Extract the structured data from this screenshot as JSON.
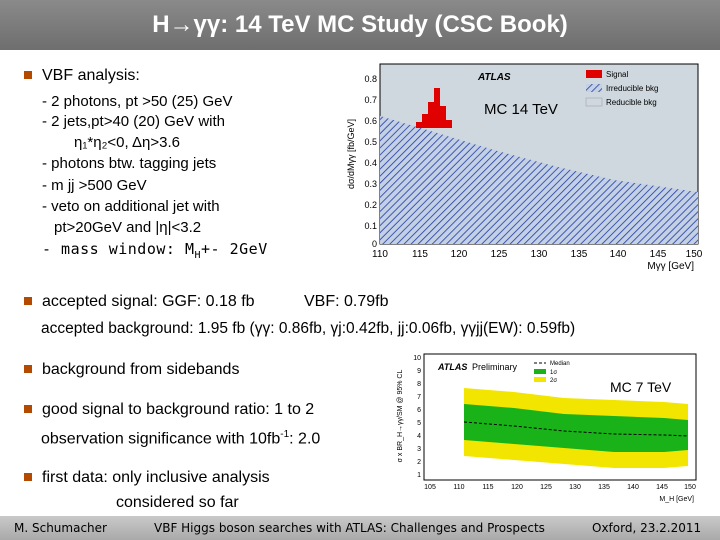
{
  "slide": {
    "title": "H→γγ: 14 TeV MC Study (CSC Book)",
    "vbf": {
      "heading": "VBF analysis:",
      "line1": "- 2 photons, pt >50 (25) GeV",
      "line2": "- 2 jets,pt>40 (20) GeV with",
      "line3": "η₁*η₂<0, Δη>3.6",
      "line4": "- photons btw. tagging jets",
      "line5": "- m jj >500 GeV",
      "line6": "- veto on additional jet with",
      "line7": "pt>20GeV and |η|<3.2",
      "line8": "- mass window: M",
      "line8_sub": "H",
      "line8_tail": "+- 2GeV"
    },
    "accepted": {
      "signal_label": "accepted signal: GGF: 0.18 fb",
      "signal_vbf": "VBF: 0.79fb",
      "background": "accepted background:  1.95 fb  (γγ: 0.86fb, γj:0.42fb,  jj:0.06fb,  γγjj(EW): 0.59fb)"
    },
    "sidebands": "background from sidebands",
    "ratio": {
      "line1": "good signal to background ratio: 1 to 2",
      "line2_pre": "observation significance with 10fb",
      "line2_sup": "-1",
      "line2_post": ": 2.0"
    },
    "firstdata": {
      "line1": "first data: only inclusive analysis",
      "line2": "considered so far"
    }
  },
  "plot1": {
    "atlas": "ATLAS",
    "overlay": "MC 14 TeV",
    "ylabel": "dσ/dMγγ [fb/GeV]",
    "xlabel": "Mγγ [GeV]",
    "legend": [
      "Signal",
      "Irreducible bkg",
      "Reducible bkg"
    ],
    "yticks": [
      "0.8",
      "0.7",
      "0.6",
      "0.5",
      "0.4",
      "0.3",
      "0.2",
      "0.1",
      "0"
    ],
    "xticks": [
      "110",
      "115",
      "120",
      "125",
      "130",
      "135",
      "140",
      "145",
      "150"
    ]
  },
  "plot2": {
    "atlas": "ATLAS",
    "prelim": "Preliminary",
    "overlay": "MC 7 TeV",
    "legend": [
      "Median",
      "1σ",
      "2σ"
    ],
    "ylabel": "σ x BR_H→γγ/SM @ 95% CL",
    "xlabel": "M_H [GeV]",
    "yticks": [
      "10",
      "9",
      "8",
      "7",
      "6",
      "5",
      "4",
      "3",
      "2",
      "1"
    ],
    "xticks": [
      "105",
      "110",
      "115",
      "120",
      "125",
      "130",
      "135",
      "140",
      "145",
      "150"
    ]
  },
  "footer": {
    "author": "M. Schumacher",
    "talk": "VBF Higgs boson searches with ATLAS: Challenges and Prospects",
    "place_date": "Oxford, 23.2.2011"
  },
  "colors": {
    "title_bar": "#7a7a7a",
    "bullet": "#b34a00",
    "signal": "#e00000",
    "irreducible": "#1e3c9c",
    "reducible": "#cfd8de",
    "band_2sigma": "#f2e600",
    "band_1sigma": "#19b219"
  }
}
